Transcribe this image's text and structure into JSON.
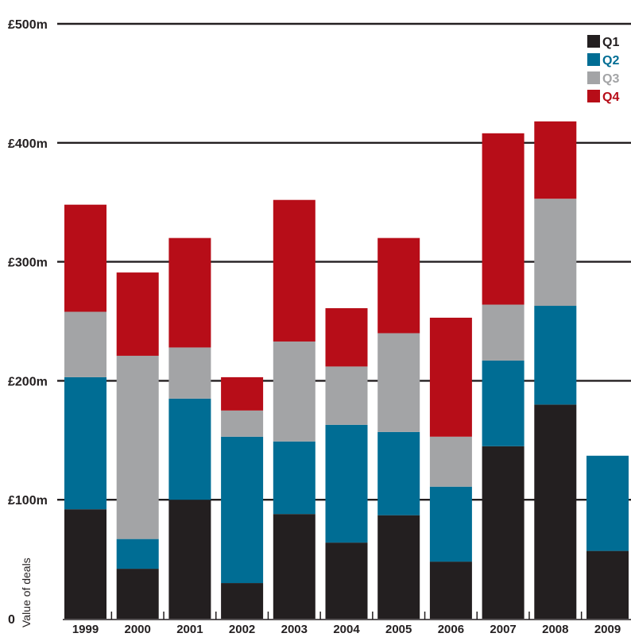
{
  "chart_data": {
    "type": "bar",
    "stacked": true,
    "title": "",
    "xlabel": "",
    "ylabel": "Value of deals",
    "ylim": [
      0,
      500
    ],
    "y_ticks": [
      {
        "value": 0,
        "label": "0"
      },
      {
        "value": 100,
        "label": "£100m"
      },
      {
        "value": 200,
        "label": "£200m"
      },
      {
        "value": 300,
        "label": "£300m"
      },
      {
        "value": 400,
        "label": "£400m"
      },
      {
        "value": 500,
        "label": "£500m"
      }
    ],
    "grid": true,
    "legend_position": "top-right",
    "categories": [
      "1999",
      "2000",
      "2001",
      "2002",
      "2003",
      "2004",
      "2005",
      "2006",
      "2007",
      "2008",
      "2009"
    ],
    "series": [
      {
        "name": "Q1",
        "color": "#231f20",
        "values": [
          92,
          42,
          100,
          30,
          88,
          64,
          87,
          48,
          145,
          180,
          57
        ]
      },
      {
        "name": "Q2",
        "color": "#006d94",
        "values": [
          111,
          25,
          85,
          123,
          61,
          99,
          70,
          63,
          72,
          83,
          80
        ]
      },
      {
        "name": "Q3",
        "color": "#a3a4a6",
        "values": [
          55,
          154,
          43,
          22,
          84,
          49,
          83,
          42,
          47,
          90,
          0
        ]
      },
      {
        "name": "Q4",
        "color": "#b70d18",
        "values": [
          90,
          70,
          92,
          28,
          119,
          49,
          80,
          100,
          144,
          65,
          0
        ]
      }
    ]
  }
}
